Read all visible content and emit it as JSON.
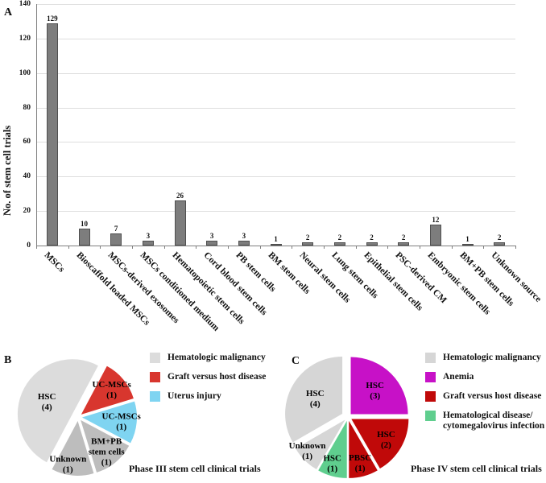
{
  "figure": {
    "panel_a": {
      "letter": "A"
    },
    "panel_b": {
      "letter": "B"
    },
    "panel_c": {
      "letter": "C"
    }
  },
  "chart_data": [
    {
      "id": "stem_cell_trials_bar",
      "type": "bar",
      "panel": "A",
      "title": "",
      "xlabel": "",
      "ylabel": "No. of stem cell trials",
      "ylim": [
        0,
        140
      ],
      "ytick_step": 20,
      "ytick_labels": [
        "0",
        "20",
        "40",
        "60",
        "80",
        "100",
        "120",
        "140"
      ],
      "grid": true,
      "bar_color": "#7d7d7d",
      "bar_border_color": "#4f4f4f",
      "categories": [
        "MSCs",
        "Bioscaffold loaded MSCs",
        "MSCs-derived exosomes",
        "MSCs conditioned medium",
        "Hematopoietic stem cells",
        "Cord blood stem cells",
        "PB stem cells",
        "BM stem cells",
        "Neural stem cells",
        "Lung stem cells",
        "Epithelial stem cells",
        "PSC-derived CM",
        "Embryonic stem cells",
        "BM+PB stem cells",
        "Unknown source"
      ],
      "values": [
        129,
        10,
        7,
        3,
        26,
        3,
        3,
        1,
        2,
        2,
        2,
        2,
        12,
        1,
        2
      ]
    },
    {
      "id": "phase3_pie",
      "type": "pie",
      "panel": "B",
      "title": "Phase III stem cell clinical trials",
      "legend_position": "right",
      "start_angle_deg": 28,
      "slices": [
        {
          "name": "UC-MSCs",
          "value": 1,
          "lines": [
            "UC-MSCs",
            "(1)"
          ],
          "color": "#d8362e",
          "explode": 5,
          "label_r": 0.72
        },
        {
          "name": "UC-MSCs",
          "value": 1,
          "lines": [
            "UC-MSCs",
            "(1)"
          ],
          "color": "#7fd4f1",
          "explode": 5,
          "label_r": 0.72
        },
        {
          "name": "BM+PB stem cells",
          "value": 1,
          "lines": [
            "BM+PB",
            "stem cells",
            "(1)"
          ],
          "color": "#bdbdbd",
          "explode": 5,
          "label_r": 0.74
        },
        {
          "name": "Unknown",
          "value": 1,
          "lines": [
            "Unknown",
            "(1)"
          ],
          "color": "#bdbdbd",
          "explode": 5,
          "label_r": 0.8,
          "label_angle": 193
        },
        {
          "name": "HSC",
          "value": 4,
          "lines": [
            "HSC",
            "(4)"
          ],
          "color": "#dcdcdc",
          "explode": 8,
          "label_r": 0.52,
          "label_angle": 296
        }
      ],
      "legend": [
        {
          "label_lines": [
            "Hematologic malignancy"
          ],
          "color": "#dcdcdc"
        },
        {
          "label_lines": [
            "Graft versus host disease"
          ],
          "color": "#d8362e"
        },
        {
          "label_lines": [
            "Uterus injury"
          ],
          "color": "#7fd4f1"
        }
      ]
    },
    {
      "id": "phase4_pie",
      "type": "pie",
      "panel": "C",
      "title": "Phase IV stem cell clinical trials",
      "legend_position": "right",
      "start_angle_deg": 0,
      "slices": [
        {
          "name": "HSC",
          "value": 3,
          "lines": [
            "HSC",
            "(3)"
          ],
          "color": "#c711c7",
          "explode": 5,
          "label_r": 0.6
        },
        {
          "name": "HSC",
          "value": 2,
          "lines": [
            "HSC",
            "(2)"
          ],
          "color": "#c00909",
          "explode": 5,
          "label_r": 0.7
        },
        {
          "name": "PBSC",
          "value": 1,
          "lines": [
            "PBSC",
            "(1)"
          ],
          "color": "#c00909",
          "explode": 5,
          "label_r": 0.75
        },
        {
          "name": "HSC",
          "value": 1,
          "lines": [
            "HSC",
            "(1)"
          ],
          "color": "#5fce8e",
          "explode": 5,
          "label_r": 0.78,
          "label_angle": 199
        },
        {
          "name": "Unknown",
          "value": 1,
          "lines": [
            "Unknown",
            "(1)"
          ],
          "color": "#d6d6d6",
          "explode": 5,
          "label_r": 0.85,
          "label_angle": 231
        },
        {
          "name": "HSC",
          "value": 4,
          "lines": [
            "HSC",
            "(4)"
          ],
          "color": "#d6d6d6",
          "explode": 8,
          "label_r": 0.55
        }
      ],
      "legend": [
        {
          "label_lines": [
            "Hematologic malignancy"
          ],
          "color": "#d6d6d6"
        },
        {
          "label_lines": [
            "Anemia"
          ],
          "color": "#c711c7"
        },
        {
          "label_lines": [
            "Graft versus host disease"
          ],
          "color": "#c00909"
        },
        {
          "label_lines": [
            "Hematological disease/",
            "cytomegalovirus infection"
          ],
          "color": "#5fce8e"
        }
      ]
    }
  ],
  "colors": {
    "bar_fill": "#7d7d7d",
    "grid": "#dedede",
    "axis": "#7f7f7f",
    "light_gray_slice": "#dcdcdc",
    "medium_gray_slice": "#bdbdbd",
    "red": "#d8362e",
    "dark_red": "#c00909",
    "light_blue": "#7fd4f1",
    "magenta": "#c711c7",
    "green": "#5fce8e"
  }
}
